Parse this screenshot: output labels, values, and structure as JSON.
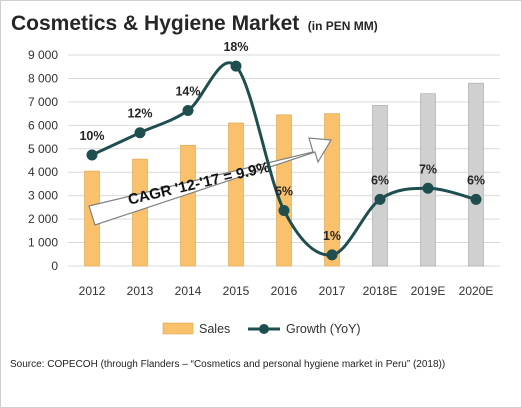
{
  "chart_data": {
    "type": "bar",
    "title": "Cosmetics & Hygiene Market",
    "title_unit": "(in PEN MM)",
    "categories": [
      "2012",
      "2013",
      "2014",
      "2015",
      "2016",
      "2017",
      "2018E",
      "2019E",
      "2020E"
    ],
    "series": [
      {
        "name": "Sales",
        "type": "bar",
        "axis": "left",
        "values": [
          4050,
          4560,
          5150,
          6100,
          6450,
          6500,
          6850,
          7350,
          7800
        ],
        "colors": [
          "#F9C16C",
          "#F9C16C",
          "#F9C16C",
          "#F9C16C",
          "#F9C16C",
          "#F9C16C",
          "#D0D0D0",
          "#D0D0D0",
          "#D0D0D0"
        ]
      },
      {
        "name": "Growth (YoY)",
        "type": "line",
        "smooth": true,
        "axis": "right-hidden",
        "values": [
          10,
          12,
          14,
          18,
          5,
          1,
          6,
          7,
          6
        ],
        "labels": [
          "10%",
          "12%",
          "14%",
          "18%",
          "5%",
          "1%",
          "6%",
          "7%",
          "6%"
        ],
        "color": "#1F4E4E"
      }
    ],
    "y_ticks": [
      "0",
      "1 000",
      "2 000",
      "3 000",
      "4 000",
      "5 000",
      "6 000",
      "7 000",
      "8 000",
      "9 000"
    ],
    "ylim": [
      0,
      9000
    ],
    "growth_axis_range": [
      0,
      19
    ],
    "grid": true,
    "legend": {
      "position": "bottom",
      "entries": [
        "Sales",
        "Growth (YoY)"
      ]
    },
    "annotation": {
      "text": "CAGR '12-'17 = 9.9%",
      "style": "arrow"
    }
  },
  "source": "Source: COPECOH (through Flanders – “Cosmetics and personal hygiene market in Peru” (2018))"
}
